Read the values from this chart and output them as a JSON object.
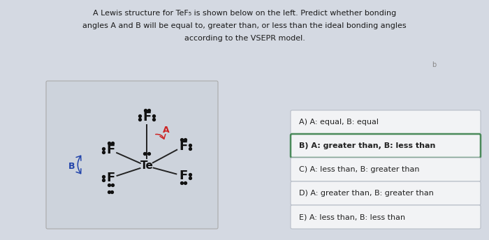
{
  "title_line1": "A Lewis structure for TeF₅ is shown below on the left. Predict whether bonding",
  "title_line2": "angles A and B will be equal to, greater than, or less than the ideal bonding angles",
  "title_line3": "according to the VSEPR model.",
  "bg_color": "#d4d9e2",
  "options": [
    {
      "label": "A) A: equal, B: equal",
      "bold": false,
      "selected": false
    },
    {
      "label": "B) A: greater than, B: less than",
      "bold": true,
      "selected": true
    },
    {
      "label": "C) A: less than, B: greater than",
      "bold": false,
      "selected": false
    },
    {
      "label": "D) A: greater than, B: greater than",
      "bold": false,
      "selected": false
    },
    {
      "label": "E) A: less than, B: less than",
      "bold": false,
      "selected": false
    }
  ],
  "selected_border": "#4a8a5a",
  "unselected_border": "#b8bec8",
  "option_bg": "#f2f3f5",
  "lewis_box_bg": "#cdd3dc"
}
